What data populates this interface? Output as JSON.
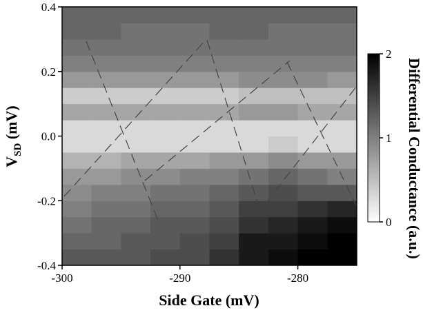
{
  "chart_data": {
    "type": "heatmap",
    "xlabel": "Side Gate (mV)",
    "ylabel": "V",
    "ylabel_sub": "SD",
    "ylabel_unit": " (mV)",
    "colorbar_label": "Differential Conductance (a.u.)",
    "xlim": [
      -300,
      -275
    ],
    "xticks": [
      -300,
      -290,
      -280
    ],
    "ylim": [
      -0.4,
      0.4
    ],
    "yticks": [
      -0.4,
      -0.2,
      {
        "value": 0,
        "label": "0.0"
      },
      0.2,
      0.4
    ],
    "zlim": [
      0,
      2
    ],
    "zticks": [
      0,
      1,
      2
    ],
    "x": [
      -298.75,
      -296.25,
      -293.75,
      -291.25,
      -288.75,
      -286.25,
      -283.75,
      -281.25,
      -278.75,
      -276.25
    ],
    "y": [
      -0.375,
      -0.325,
      -0.275,
      -0.225,
      -0.175,
      -0.125,
      -0.075,
      -0.025,
      0.025,
      0.075,
      0.125,
      0.175,
      0.225,
      0.275,
      0.325,
      0.375
    ],
    "z": [
      [
        1.3,
        1.3,
        1.3,
        1.4,
        1.4,
        1.6,
        1.8,
        1.9,
        2.0,
        2.0
      ],
      [
        1.2,
        1.2,
        1.3,
        1.3,
        1.4,
        1.5,
        1.8,
        1.8,
        1.9,
        2.0
      ],
      [
        1.1,
        1.2,
        1.2,
        1.3,
        1.3,
        1.4,
        1.6,
        1.7,
        1.8,
        1.9
      ],
      [
        1.0,
        1.1,
        1.1,
        1.2,
        1.2,
        1.3,
        1.5,
        1.5,
        1.6,
        1.7
      ],
      [
        0.9,
        1.0,
        1.0,
        1.1,
        1.1,
        1.2,
        1.3,
        1.4,
        1.3,
        1.3
      ],
      [
        0.8,
        0.8,
        0.9,
        0.9,
        1.0,
        1.0,
        1.1,
        1.2,
        1.1,
        1.0
      ],
      [
        0.6,
        0.6,
        0.7,
        0.7,
        0.7,
        0.8,
        0.8,
        0.9,
        0.8,
        0.8
      ],
      [
        0.3,
        0.3,
        0.3,
        0.3,
        0.3,
        0.3,
        0.3,
        0.4,
        0.3,
        0.3
      ],
      [
        0.3,
        0.3,
        0.3,
        0.3,
        0.3,
        0.3,
        0.3,
        0.3,
        0.3,
        0.3
      ],
      [
        0.7,
        0.7,
        0.7,
        0.7,
        0.7,
        0.7,
        0.8,
        0.8,
        0.7,
        0.7
      ],
      [
        0.4,
        0.4,
        0.4,
        0.4,
        0.4,
        0.4,
        0.5,
        0.5,
        0.5,
        0.5
      ],
      [
        0.8,
        0.8,
        0.8,
        0.8,
        0.8,
        0.8,
        0.9,
        0.9,
        0.9,
        0.8
      ],
      [
        1.0,
        1.0,
        1.0,
        1.0,
        1.0,
        1.0,
        1.0,
        1.0,
        1.0,
        1.0
      ],
      [
        1.1,
        1.1,
        1.1,
        1.1,
        1.1,
        1.1,
        1.1,
        1.1,
        1.1,
        1.1
      ],
      [
        1.2,
        1.2,
        1.1,
        1.1,
        1.1,
        1.2,
        1.2,
        1.1,
        1.1,
        1.1
      ],
      [
        1.2,
        1.2,
        1.2,
        1.2,
        1.2,
        1.2,
        1.2,
        1.2,
        1.2,
        1.2
      ]
    ]
  }
}
